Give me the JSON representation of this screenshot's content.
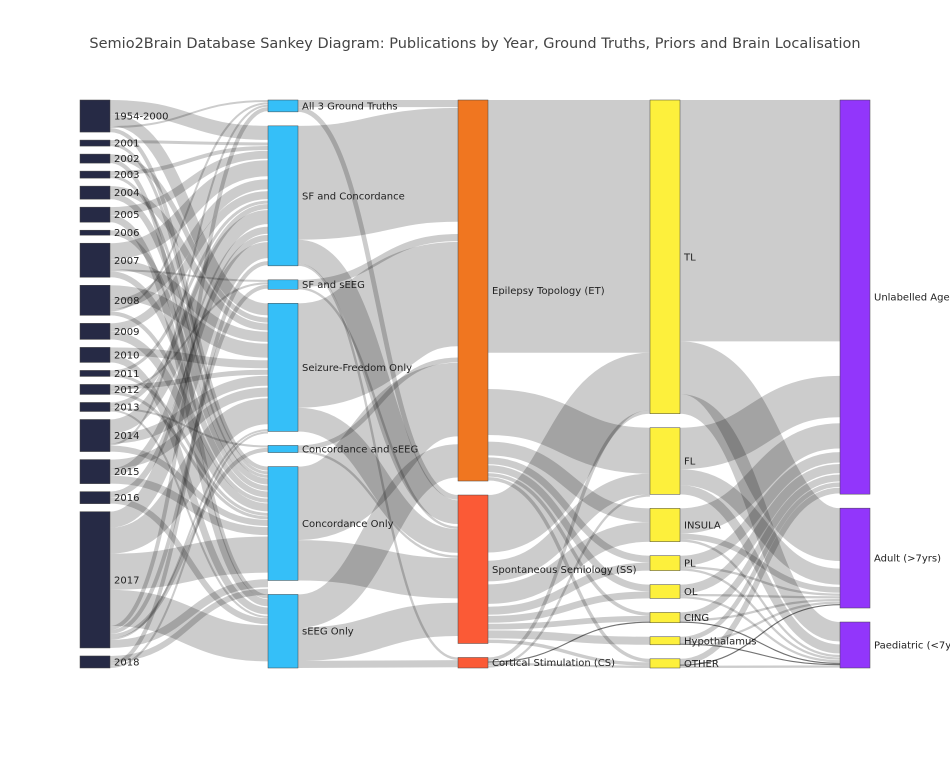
{
  "title": "Semio2Brain Database Sankey Diagram: Publications by Year, Ground Truths, Priors and Brain Localisation",
  "colors": {
    "year": "#262a45",
    "ground_truth": "#35bff8",
    "ET": "#f07620",
    "SS": "#fb5a36",
    "CS": "#fb5a36",
    "localisation": "#fdf03c",
    "age": "#9236fb",
    "link": "#000000"
  },
  "chart_data": {
    "type": "sankey",
    "columns": [
      {
        "id": "year",
        "nodes": [
          {
            "label": "1954-2000",
            "value": 32
          },
          {
            "label": "2001",
            "value": 6
          },
          {
            "label": "2002",
            "value": 9
          },
          {
            "label": "2003",
            "value": 7
          },
          {
            "label": "2004",
            "value": 13
          },
          {
            "label": "2005",
            "value": 15
          },
          {
            "label": "2006",
            "value": 5
          },
          {
            "label": "2007",
            "value": 34
          },
          {
            "label": "2008",
            "value": 30
          },
          {
            "label": "2009",
            "value": 16
          },
          {
            "label": "2010",
            "value": 15
          },
          {
            "label": "2011",
            "value": 6
          },
          {
            "label": "2012",
            "value": 10
          },
          {
            "label": "2013",
            "value": 9
          },
          {
            "label": "2014",
            "value": 32
          },
          {
            "label": "2015",
            "value": 24
          },
          {
            "label": "2016",
            "value": 12
          },
          {
            "label": "2017",
            "value": 136
          },
          {
            "label": "2018",
            "value": 12
          }
        ]
      },
      {
        "id": "ground_truth",
        "nodes": [
          {
            "label": "All 3 Ground Truths",
            "value": 10
          },
          {
            "label": "SF and Concordance",
            "value": 118
          },
          {
            "label": "SF and sEEG",
            "value": 8
          },
          {
            "label": "Seizure-Freedom Only",
            "value": 108
          },
          {
            "label": "Concordance and sEEG",
            "value": 6
          },
          {
            "label": "Concordance Only",
            "value": 96
          },
          {
            "label": "sEEG Only",
            "value": 62
          }
        ]
      },
      {
        "id": "prior",
        "nodes": [
          {
            "label": "Epilepsy Topology (ET)",
            "value": 290
          },
          {
            "label": "Spontaneous Semiology (SS)",
            "value": 113
          },
          {
            "label": "Cortical Stimulation (CS)",
            "value": 8
          }
        ]
      },
      {
        "id": "localisation",
        "nodes": [
          {
            "label": "TL",
            "value": 273
          },
          {
            "label": "FL",
            "value": 58
          },
          {
            "label": "INSULA",
            "value": 29
          },
          {
            "label": "PL",
            "value": 13
          },
          {
            "label": "OL",
            "value": 12
          },
          {
            "label": "CING",
            "value": 9
          },
          {
            "label": "Hypothalamus",
            "value": 7
          },
          {
            "label": "OTHER",
            "value": 8
          }
        ]
      },
      {
        "id": "age",
        "nodes": [
          {
            "label": "Unlabelled Age",
            "value": 300
          },
          {
            "label": "Adult (>7yrs)",
            "value": 76
          },
          {
            "label": "Paediatric (<7yrs)",
            "value": 35
          }
        ]
      }
    ],
    "links": [
      {
        "source": "1954-2000",
        "target": "SF and Concordance",
        "value": 14
      },
      {
        "source": "1954-2000",
        "target": "Seizure-Freedom Only",
        "value": 12
      },
      {
        "source": "1954-2000",
        "target": "All 3 Ground Truths",
        "value": 2
      },
      {
        "source": "1954-2000",
        "target": "Concordance Only",
        "value": 4
      },
      {
        "source": "2001",
        "target": "SF and Concordance",
        "value": 3
      },
      {
        "source": "2001",
        "target": "Concordance Only",
        "value": 3
      },
      {
        "source": "2002",
        "target": "Seizure-Freedom Only",
        "value": 5
      },
      {
        "source": "2002",
        "target": "sEEG Only",
        "value": 4
      },
      {
        "source": "2003",
        "target": "SF and Concordance",
        "value": 4
      },
      {
        "source": "2003",
        "target": "Concordance Only",
        "value": 3
      },
      {
        "source": "2004",
        "target": "Seizure-Freedom Only",
        "value": 7
      },
      {
        "source": "2004",
        "target": "Concordance Only",
        "value": 6
      },
      {
        "source": "2005",
        "target": "SF and Concordance",
        "value": 8
      },
      {
        "source": "2005",
        "target": "sEEG Only",
        "value": 7
      },
      {
        "source": "2006",
        "target": "Concordance Only",
        "value": 5
      },
      {
        "source": "2007",
        "target": "SF and Concordance",
        "value": 16
      },
      {
        "source": "2007",
        "target": "Seizure-Freedom Only",
        "value": 10
      },
      {
        "source": "2007",
        "target": "SF and sEEG",
        "value": 2
      },
      {
        "source": "2007",
        "target": "Concordance Only",
        "value": 6
      },
      {
        "source": "2008",
        "target": "Seizure-Freedom Only",
        "value": 14
      },
      {
        "source": "2008",
        "target": "SF and Concordance",
        "value": 10
      },
      {
        "source": "2008",
        "target": "All 3 Ground Truths",
        "value": 2
      },
      {
        "source": "2008",
        "target": "Concordance Only",
        "value": 4
      },
      {
        "source": "2009",
        "target": "SF and Concordance",
        "value": 8
      },
      {
        "source": "2009",
        "target": "Concordance Only",
        "value": 8
      },
      {
        "source": "2010",
        "target": "Seizure-Freedom Only",
        "value": 8
      },
      {
        "source": "2010",
        "target": "sEEG Only",
        "value": 7
      },
      {
        "source": "2011",
        "target": "SF and Concordance",
        "value": 3
      },
      {
        "source": "2011",
        "target": "Concordance Only",
        "value": 3
      },
      {
        "source": "2012",
        "target": "Seizure-Freedom Only",
        "value": 5
      },
      {
        "source": "2012",
        "target": "SF and sEEG",
        "value": 2
      },
      {
        "source": "2012",
        "target": "Concordance Only",
        "value": 3
      },
      {
        "source": "2013",
        "target": "SF and Concordance",
        "value": 5
      },
      {
        "source": "2013",
        "target": "Concordance and sEEG",
        "value": 2
      },
      {
        "source": "2013",
        "target": "sEEG Only",
        "value": 2
      },
      {
        "source": "2014",
        "target": "SF and Concordance",
        "value": 14
      },
      {
        "source": "2014",
        "target": "Seizure-Freedom Only",
        "value": 10
      },
      {
        "source": "2014",
        "target": "All 3 Ground Truths",
        "value": 2
      },
      {
        "source": "2014",
        "target": "Concordance Only",
        "value": 6
      },
      {
        "source": "2015",
        "target": "Seizure-Freedom Only",
        "value": 9
      },
      {
        "source": "2015",
        "target": "SF and Concordance",
        "value": 7
      },
      {
        "source": "2015",
        "target": "Concordance Only",
        "value": 8
      },
      {
        "source": "2016",
        "target": "SF and Concordance",
        "value": 6
      },
      {
        "source": "2016",
        "target": "sEEG Only",
        "value": 6
      },
      {
        "source": "2017",
        "target": "SF and Concordance",
        "value": 16
      },
      {
        "source": "2017",
        "target": "Seizure-Freedom Only",
        "value": 26
      },
      {
        "source": "2017",
        "target": "Concordance Only",
        "value": 36
      },
      {
        "source": "2017",
        "target": "sEEG Only",
        "value": 36
      },
      {
        "source": "2017",
        "target": "All 3 Ground Truths",
        "value": 4
      },
      {
        "source": "2017",
        "target": "SF and sEEG",
        "value": 4
      },
      {
        "source": "2017",
        "target": "Concordance and sEEG",
        "value": 4
      },
      {
        "source": "2017",
        "target": "Seizure-Freedom Only",
        "value": 2
      },
      {
        "source": "2017",
        "target": "Concordance Only",
        "value": 8
      },
      {
        "source": "2018",
        "target": "Concordance Only",
        "value": 6
      },
      {
        "source": "2018",
        "target": "SF and Concordance",
        "value": 4
      },
      {
        "source": "2018",
        "target": "Seizure-Freedom Only",
        "value": 2
      },
      {
        "source": "All 3 Ground Truths",
        "target": "Epilepsy Topology (ET)",
        "value": 6
      },
      {
        "source": "All 3 Ground Truths",
        "target": "Spontaneous Semiology (SS)",
        "value": 4
      },
      {
        "source": "SF and Concordance",
        "target": "Epilepsy Topology (ET)",
        "value": 96
      },
      {
        "source": "SF and Concordance",
        "target": "Spontaneous Semiology (SS)",
        "value": 20
      },
      {
        "source": "SF and Concordance",
        "target": "Cortical Stimulation (CS)",
        "value": 2
      },
      {
        "source": "SF and sEEG",
        "target": "Epilepsy Topology (ET)",
        "value": 6
      },
      {
        "source": "SF and sEEG",
        "target": "Spontaneous Semiology (SS)",
        "value": 2
      },
      {
        "source": "Seizure-Freedom Only",
        "target": "Epilepsy Topology (ET)",
        "value": 88
      },
      {
        "source": "Seizure-Freedom Only",
        "target": "Spontaneous Semiology (SS)",
        "value": 20
      },
      {
        "source": "Concordance and sEEG",
        "target": "Epilepsy Topology (ET)",
        "value": 4
      },
      {
        "source": "Concordance and sEEG",
        "target": "Spontaneous Semiology (SS)",
        "value": 2
      },
      {
        "source": "Concordance Only",
        "target": "Epilepsy Topology (ET)",
        "value": 62
      },
      {
        "source": "Concordance Only",
        "target": "Spontaneous Semiology (SS)",
        "value": 34
      },
      {
        "source": "sEEG Only",
        "target": "Epilepsy Topology (ET)",
        "value": 28
      },
      {
        "source": "sEEG Only",
        "target": "Spontaneous Semiology (SS)",
        "value": 28
      },
      {
        "source": "sEEG Only",
        "target": "Cortical Stimulation (CS)",
        "value": 6
      },
      {
        "source": "Epilepsy Topology (ET)",
        "target": "TL",
        "value": 220
      },
      {
        "source": "Epilepsy Topology (ET)",
        "target": "FL",
        "value": 40
      },
      {
        "source": "Epilepsy Topology (ET)",
        "target": "INSULA",
        "value": 12
      },
      {
        "source": "Epilepsy Topology (ET)",
        "target": "PL",
        "value": 6
      },
      {
        "source": "Epilepsy Topology (ET)",
        "target": "OL",
        "value": 6
      },
      {
        "source": "Epilepsy Topology (ET)",
        "target": "CING",
        "value": 3
      },
      {
        "source": "Epilepsy Topology (ET)",
        "target": "OTHER",
        "value": 3
      },
      {
        "source": "Spontaneous Semiology (SS)",
        "target": "TL",
        "value": 50
      },
      {
        "source": "Spontaneous Semiology (SS)",
        "target": "FL",
        "value": 18
      },
      {
        "source": "Spontaneous Semiology (SS)",
        "target": "INSULA",
        "value": 17
      },
      {
        "source": "Spontaneous Semiology (SS)",
        "target": "PL",
        "value": 7
      },
      {
        "source": "Spontaneous Semiology (SS)",
        "target": "OL",
        "value": 6
      },
      {
        "source": "Spontaneous Semiology (SS)",
        "target": "CING",
        "value": 5
      },
      {
        "source": "Spontaneous Semiology (SS)",
        "target": "Hypothalamus",
        "value": 7
      },
      {
        "source": "Spontaneous Semiology (SS)",
        "target": "OTHER",
        "value": 3
      },
      {
        "source": "Cortical Stimulation (CS)",
        "target": "TL",
        "value": 3
      },
      {
        "source": "Cortical Stimulation (CS)",
        "target": "CING",
        "value": 1
      },
      {
        "source": "Cortical Stimulation (CS)",
        "target": "OTHER",
        "value": 2
      },
      {
        "source": "Cortical Stimulation (CS)",
        "target": "FL",
        "value": 2
      },
      {
        "source": "TL",
        "target": "Unlabelled Age",
        "value": 210
      },
      {
        "source": "TL",
        "target": "Adult (>7yrs)",
        "value": 46
      },
      {
        "source": "TL",
        "target": "Paediatric (<7yrs)",
        "value": 17
      },
      {
        "source": "FL",
        "target": "Unlabelled Age",
        "value": 36
      },
      {
        "source": "FL",
        "target": "Adult (>7yrs)",
        "value": 14
      },
      {
        "source": "FL",
        "target": "Paediatric (<7yrs)",
        "value": 8
      },
      {
        "source": "INSULA",
        "target": "Unlabelled Age",
        "value": 22
      },
      {
        "source": "INSULA",
        "target": "Adult (>7yrs)",
        "value": 5
      },
      {
        "source": "INSULA",
        "target": "Paediatric (<7yrs)",
        "value": 2
      },
      {
        "source": "PL",
        "target": "Unlabelled Age",
        "value": 9
      },
      {
        "source": "PL",
        "target": "Adult (>7yrs)",
        "value": 2
      },
      {
        "source": "PL",
        "target": "Paediatric (<7yrs)",
        "value": 2
      },
      {
        "source": "OL",
        "target": "Unlabelled Age",
        "value": 8
      },
      {
        "source": "OL",
        "target": "Adult (>7yrs)",
        "value": 2
      },
      {
        "source": "OL",
        "target": "Paediatric (<7yrs)",
        "value": 2
      },
      {
        "source": "CING",
        "target": "Unlabelled Age",
        "value": 6
      },
      {
        "source": "CING",
        "target": "Adult (>7yrs)",
        "value": 2
      },
      {
        "source": "CING",
        "target": "Paediatric (<7yrs)",
        "value": 1
      },
      {
        "source": "Hypothalamus",
        "target": "Unlabelled Age",
        "value": 4
      },
      {
        "source": "Hypothalamus",
        "target": "Adult (>7yrs)",
        "value": 2
      },
      {
        "source": "Hypothalamus",
        "target": "Paediatric (<7yrs)",
        "value": 1
      },
      {
        "source": "OTHER",
        "target": "Unlabelled Age",
        "value": 5
      },
      {
        "source": "OTHER",
        "target": "Adult (>7yrs)",
        "value": 1
      },
      {
        "source": "OTHER",
        "target": "Paediatric (<7yrs)",
        "value": 2
      }
    ]
  }
}
